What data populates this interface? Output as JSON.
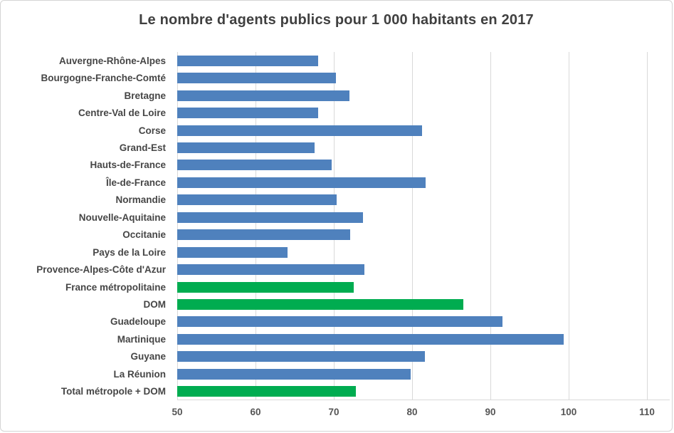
{
  "chart_data": {
    "type": "bar",
    "orientation": "horizontal",
    "title": "Le nombre d'agents publics pour 1 000 habitants en 2017",
    "xlabel": "",
    "ylabel": "",
    "xlim": [
      50,
      110
    ],
    "xticks": [
      50,
      60,
      70,
      80,
      90,
      100,
      110
    ],
    "grid": true,
    "categories": [
      "Auvergne-Rhône-Alpes",
      "Bourgogne-Franche-Comté",
      "Bretagne",
      "Centre-Val de Loire",
      "Corse",
      "Grand-Est",
      "Hauts-de-France",
      "Île-de-France",
      "Normandie",
      "Nouvelle-Aquitaine",
      "Occitanie",
      "Pays de la Loire",
      "Provence-Alpes-Côte d'Azur",
      "France métropolitaine",
      "DOM",
      "Guadeloupe",
      "Martinique",
      "Guyane",
      "La Réunion",
      "Total métropole + DOM"
    ],
    "values": [
      68,
      70.3,
      72,
      68,
      81.3,
      67.5,
      69.7,
      81.7,
      70.4,
      73.7,
      72.1,
      64.1,
      73.9,
      72.5,
      86.5,
      91.5,
      99.4,
      81.6,
      79.8,
      72.8
    ],
    "highlight_indices": [
      13,
      14,
      19
    ],
    "colors": {
      "bar": "#4F81BD",
      "highlight": "#00AC50",
      "gridline": "#d9d9d9",
      "title_text": "#404040",
      "label_text": "#464646"
    },
    "legend": null
  }
}
